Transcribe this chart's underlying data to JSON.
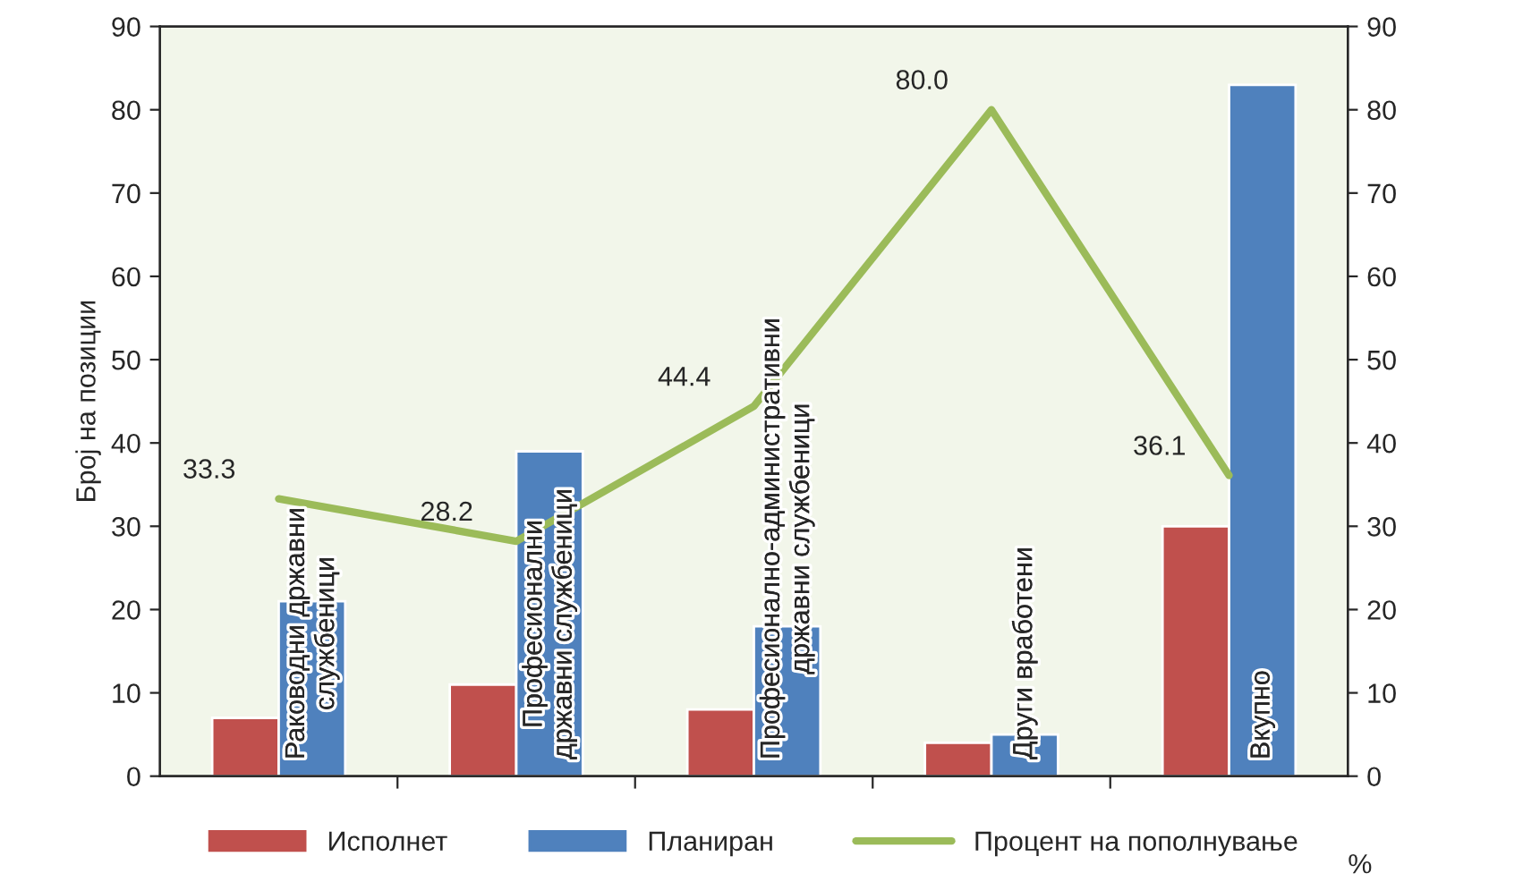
{
  "chart_data": {
    "type": "bar",
    "ylabel": "Број на позиции",
    "y2label": "%",
    "categories": [
      "Раководни државни службеници",
      "Професионални државни службеници",
      "Професионално-административни државни службеници",
      "Други вработени",
      "Вкупно"
    ],
    "series": [
      {
        "name": "Исполнет",
        "color": "#c0504d",
        "values": [
          7,
          11,
          8,
          4,
          30
        ]
      },
      {
        "name": "Планиран",
        "color": "#4f81bd",
        "values": [
          21,
          39,
          18,
          5,
          83
        ]
      },
      {
        "name": "Процент на пополнување",
        "type": "line",
        "axis": "y2",
        "color": "#9bbb59",
        "values": [
          33.3,
          28.2,
          44.4,
          80.0,
          36.1
        ],
        "value_labels": [
          "33.3",
          "28.2",
          "44.4",
          "80.0",
          "36.1"
        ]
      }
    ],
    "ylim": [
      0,
      90
    ],
    "yticks": [
      0,
      10,
      20,
      30,
      40,
      50,
      60,
      70,
      80,
      90
    ],
    "y2lim": [
      0,
      90
    ],
    "y2ticks": [
      0,
      10,
      20,
      30,
      40,
      50,
      60,
      70,
      80,
      90
    ],
    "legend": "bottom",
    "grid": false
  }
}
